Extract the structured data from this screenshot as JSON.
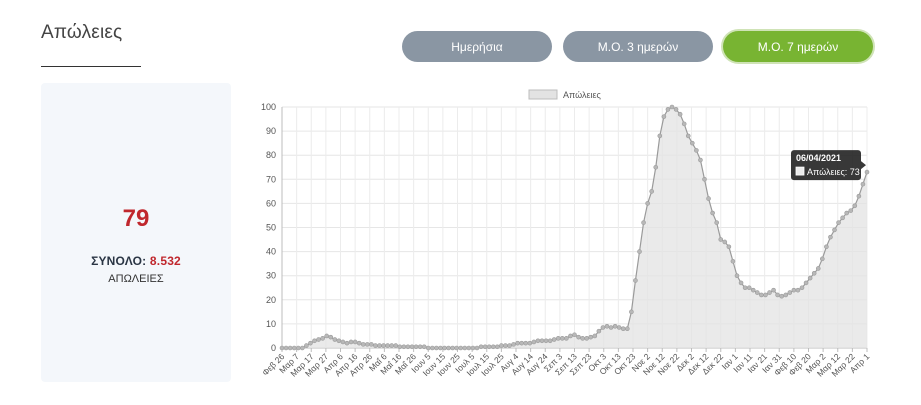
{
  "page": {
    "title": "Απώλειες",
    "tabs": [
      {
        "label": "Ημερήσια",
        "active": false
      },
      {
        "label": "Μ.Ο. 3 ημερών",
        "active": false
      },
      {
        "label": "Μ.Ο. 7 ημερών",
        "active": true
      }
    ]
  },
  "summary": {
    "today_value": "79",
    "total_label": "ΣΥΝΟΛΟ:",
    "total_value": "8.532",
    "unit_label": "ΑΠΩΛΕΙΕΣ"
  },
  "colors": {
    "accent_green": "#78b432",
    "tab_gray": "#8a96a3",
    "highlight_red": "#c0272d",
    "series_fill": "#e3e3e3",
    "series_line": "#9a9a9a"
  },
  "chart_data": {
    "type": "area",
    "title": "",
    "xlabel": "",
    "ylabel": "",
    "ylim": [
      0,
      100
    ],
    "y_ticks": [
      0,
      10,
      20,
      30,
      40,
      50,
      60,
      70,
      80,
      90,
      100
    ],
    "grid": true,
    "legend_position": "top",
    "x_tick_labels": [
      "Φεβ 26",
      "Μαρ 7",
      "Μαρ 17",
      "Μαρ 27",
      "Απρ 6",
      "Απρ 16",
      "Απρ 26",
      "Μαΐ 6",
      "Μαΐ 16",
      "Μαΐ 26",
      "Ιουν 5",
      "Ιουν 15",
      "Ιουν 25",
      "Ιουλ 5",
      "Ιουλ 15",
      "Ιουλ 25",
      "Αυγ 4",
      "Αυγ 14",
      "Αυγ 24",
      "Σεπ 3",
      "Σεπ 13",
      "Σεπ 23",
      "Οκτ 3",
      "Οκτ 13",
      "Οκτ 23",
      "Νοε 2",
      "Νοε 12",
      "Νοε 22",
      "Δεκ 2",
      "Δεκ 12",
      "Δεκ 22",
      "Ιαν 1",
      "Ιαν 11",
      "Ιαν 21",
      "Ιαν 31",
      "Φεβ 10",
      "Φεβ 20",
      "Μαρ 2",
      "Μαρ 12",
      "Μαρ 22",
      "Απρ 1"
    ],
    "series": [
      {
        "name": "Απώλειες",
        "values": [
          0,
          0,
          0,
          0,
          0,
          0,
          1,
          2,
          3,
          3.5,
          4,
          5,
          4.5,
          3.5,
          3,
          2.5,
          2,
          2.5,
          2.5,
          2,
          1.5,
          1.5,
          1.5,
          1,
          1,
          1,
          1,
          1,
          1,
          0.5,
          0.5,
          0.5,
          0.5,
          0.5,
          0.5,
          0.5,
          0,
          0,
          0,
          0,
          0,
          0,
          0,
          0,
          0,
          0,
          0,
          0,
          0,
          0.5,
          0.5,
          0.5,
          0.5,
          0.5,
          1,
          1,
          1,
          1.5,
          2,
          2,
          2,
          2,
          2.5,
          3,
          3,
          3,
          3,
          3.5,
          4,
          4,
          4,
          5,
          5.5,
          4.5,
          4,
          4,
          4.5,
          5,
          7,
          8.5,
          9,
          8.5,
          9,
          8.5,
          8,
          8,
          15,
          28,
          40,
          52,
          60,
          65,
          75,
          88,
          96,
          99,
          100,
          99,
          97,
          93,
          88,
          85,
          82,
          78,
          70,
          62,
          56,
          52,
          45,
          44,
          42,
          36,
          30,
          27,
          25,
          25,
          24,
          23,
          22,
          22,
          23,
          24,
          22,
          21.5,
          22,
          23,
          24,
          24,
          25,
          27,
          29,
          31,
          33,
          37,
          42,
          46,
          49,
          52,
          54,
          56,
          57,
          59,
          63,
          68,
          73
        ]
      }
    ],
    "tooltip": {
      "title": "06/04/2021",
      "series": "Απώλειες",
      "value": 73
    }
  }
}
